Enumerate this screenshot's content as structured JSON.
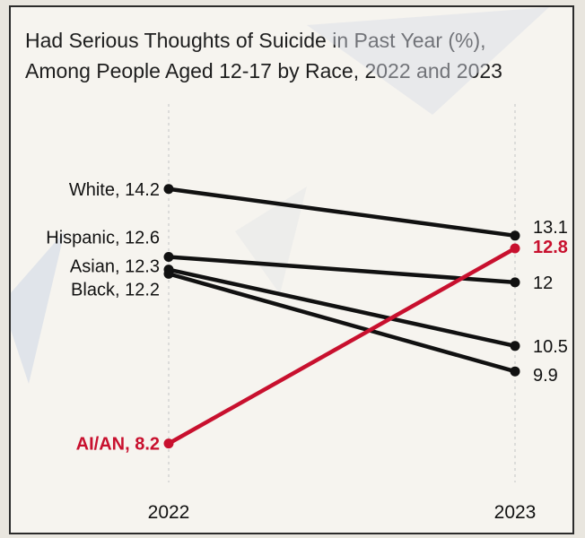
{
  "chart_data": {
    "type": "line",
    "title": "Had Serious Thoughts of Suicide in Past Year (%), Among People Aged 12-17 by Race, 2022 and 2023",
    "title_lines": [
      "Had Serious Thoughts of Suicide in Past Year (%),",
      "Among People Aged 12-17 by Race, 2022 and 2023"
    ],
    "x": [
      "2022",
      "2023"
    ],
    "ylim": [
      7.6,
      15.4
    ],
    "grid": false,
    "series": [
      {
        "name": "White",
        "values": [
          14.2,
          13.1
        ],
        "label_start": "White, 14.2",
        "label_end": "13.1",
        "color": "#111111",
        "highlight": false
      },
      {
        "name": "Hispanic",
        "values": [
          12.6,
          12
        ],
        "label_start": "Hispanic, 12.6",
        "label_end": "12",
        "color": "#111111",
        "highlight": false
      },
      {
        "name": "Asian",
        "values": [
          12.3,
          10.5
        ],
        "label_start": "Asian, 12.3",
        "label_end": "10.5",
        "color": "#111111",
        "highlight": false
      },
      {
        "name": "Black",
        "values": [
          12.2,
          9.9
        ],
        "label_start": "Black, 12.2",
        "label_end": "9.9",
        "color": "#111111",
        "highlight": false
      },
      {
        "name": "AI/AN",
        "values": [
          8.2,
          12.8
        ],
        "label_start": "AI/AN, 8.2",
        "label_end": "12.8",
        "color": "#c8102e",
        "highlight": true
      }
    ]
  }
}
